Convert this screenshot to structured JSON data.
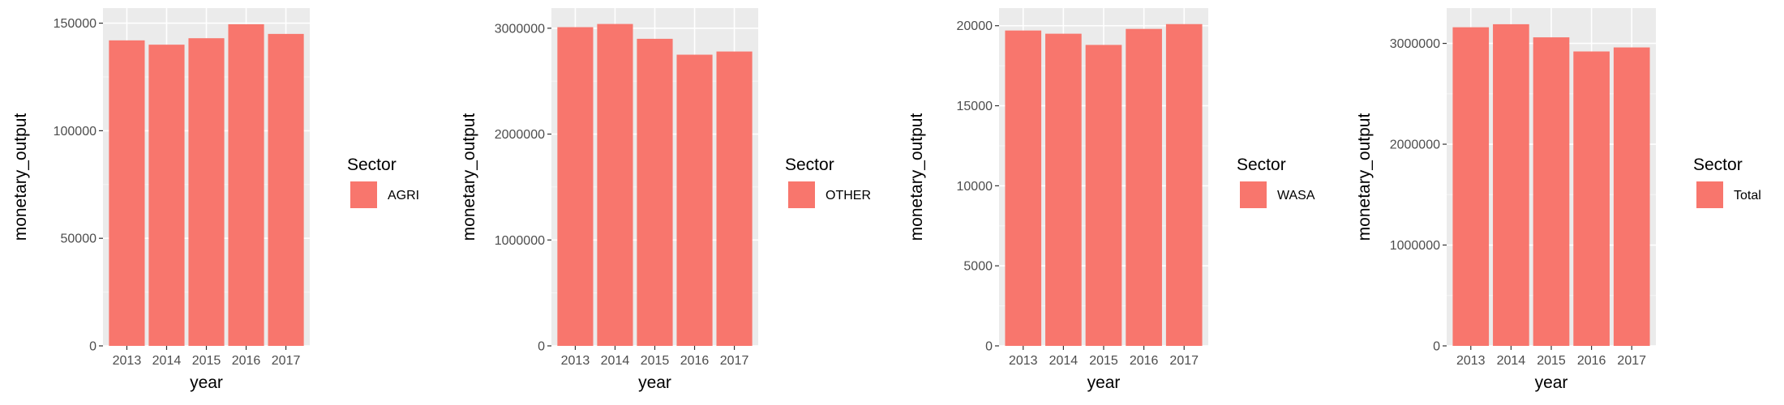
{
  "colors": {
    "bar": "#F8766D",
    "panel_bg": "#EBEBEB",
    "grid_major": "#FFFFFF",
    "grid_minor": "#F5F5F5",
    "tick": "#333333"
  },
  "chart_data": [
    {
      "type": "bar",
      "categories": [
        "2013",
        "2014",
        "2015",
        "2016",
        "2017"
      ],
      "series": [
        {
          "name": "AGRI",
          "values": [
            142000,
            140000,
            143000,
            149500,
            145000
          ]
        }
      ],
      "xlabel": "year",
      "ylabel": "monetary_output",
      "ylim": [
        0,
        157000
      ],
      "yticks": [
        0,
        50000,
        100000,
        150000
      ],
      "ytick_labels": [
        "0",
        "50000",
        "100000",
        "150000"
      ],
      "legend_title": "Sector",
      "legend_position": "right",
      "grid": true
    },
    {
      "type": "bar",
      "categories": [
        "2013",
        "2014",
        "2015",
        "2016",
        "2017"
      ],
      "series": [
        {
          "name": "OTHER",
          "values": [
            3010000,
            3040000,
            2900000,
            2750000,
            2780000
          ]
        }
      ],
      "xlabel": "year",
      "ylabel": "monetary_output",
      "ylim": [
        0,
        3190000
      ],
      "yticks": [
        0,
        1000000,
        2000000,
        3000000
      ],
      "ytick_labels": [
        "0",
        "1000000",
        "2000000",
        "3000000"
      ],
      "legend_title": "Sector",
      "legend_position": "right",
      "grid": true
    },
    {
      "type": "bar",
      "categories": [
        "2013",
        "2014",
        "2015",
        "2016",
        "2017"
      ],
      "series": [
        {
          "name": "WASA",
          "values": [
            19700,
            19500,
            18800,
            19800,
            20100
          ]
        }
      ],
      "xlabel": "year",
      "ylabel": "monetary_output",
      "ylim": [
        0,
        21100
      ],
      "yticks": [
        0,
        5000,
        10000,
        15000,
        20000
      ],
      "ytick_labels": [
        "0",
        "5000",
        "10000",
        "15000",
        "20000"
      ],
      "legend_title": "Sector",
      "legend_position": "right",
      "grid": true
    },
    {
      "type": "bar",
      "categories": [
        "2013",
        "2014",
        "2015",
        "2016",
        "2017"
      ],
      "series": [
        {
          "name": "Total",
          "values": [
            3160000,
            3190000,
            3060000,
            2920000,
            2960000
          ]
        }
      ],
      "xlabel": "year",
      "ylabel": "monetary_output",
      "ylim": [
        0,
        3350000
      ],
      "yticks": [
        0,
        1000000,
        2000000,
        3000000
      ],
      "ytick_labels": [
        "0",
        "1000000",
        "2000000",
        "3000000"
      ],
      "legend_title": "Sector",
      "legend_position": "right",
      "grid": true
    }
  ]
}
